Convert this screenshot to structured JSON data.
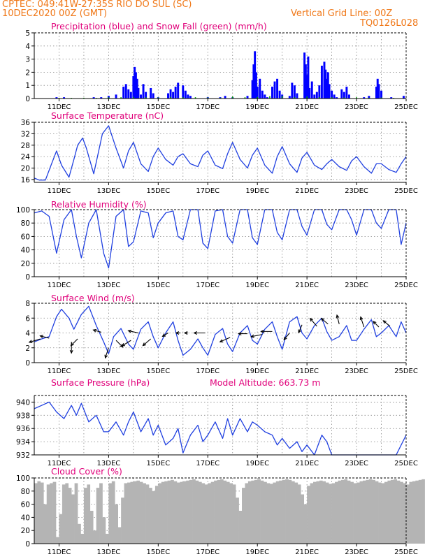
{
  "header": {
    "line1": "CPTEC:   049:41W-27:35S  RIO DO SUL (SC)",
    "line2": "10DEC2020 00Z (GMT)",
    "grid_note": "Vertical Grid Line: 00Z",
    "code": "TQ0126L028"
  },
  "colors": {
    "header": "#f07818",
    "title": "#e0007a",
    "precip": "#0000ff",
    "snow": "#00a000",
    "line": "#2040e0",
    "cloud": "#b4b4b4",
    "wind": "#000000"
  },
  "x_axis": {
    "start_day": 10,
    "end_day": 25,
    "tick_labels": [
      "11DEC",
      "13DEC",
      "15DEC",
      "17DEC",
      "19DEC",
      "21DEC",
      "23DEC",
      "25DEC"
    ],
    "tick_days": [
      11,
      13,
      15,
      17,
      19,
      21,
      23,
      25
    ]
  },
  "chart_data": [
    {
      "id": "precip",
      "type": "bar",
      "title": "Precipitation (blue) and Snow Fall (green) (mm/h)",
      "ylim": [
        0,
        5
      ],
      "yticks": [
        0,
        1,
        2,
        3,
        4,
        5
      ],
      "ytick_labels": [
        "0",
        "1",
        "2",
        "3",
        "4",
        "5"
      ],
      "x": [
        10.9,
        11.2,
        12.4,
        12.7,
        13.0,
        13.3,
        13.6,
        13.7,
        13.8,
        13.9,
        14.0,
        14.05,
        14.1,
        14.15,
        14.2,
        14.3,
        14.4,
        14.5,
        14.7,
        14.8,
        15.0,
        15.4,
        15.5,
        15.6,
        15.7,
        15.8,
        16.0,
        16.1,
        16.2,
        16.3,
        17.0,
        17.5,
        17.7,
        18.0,
        18.6,
        18.8,
        18.85,
        18.9,
        18.95,
        19.0,
        19.1,
        19.2,
        19.3,
        19.4,
        19.6,
        19.7,
        19.8,
        19.9,
        20.0,
        20.3,
        20.4,
        20.5,
        20.6,
        20.9,
        20.95,
        21.0,
        21.05,
        21.1,
        21.2,
        21.3,
        21.4,
        21.5,
        21.6,
        21.7,
        21.75,
        21.8,
        21.85,
        21.9,
        22.0,
        22.1,
        22.2,
        22.4,
        22.5,
        22.6,
        22.7,
        23.3,
        23.5,
        23.8,
        23.85,
        23.9,
        24.0,
        24.4,
        24.9
      ],
      "values": [
        0.1,
        0.1,
        0.1,
        0.1,
        0.2,
        0.3,
        0.9,
        1.1,
        0.7,
        0.5,
        1.7,
        2.4,
        2.0,
        1.5,
        0.8,
        0.3,
        1.1,
        0.5,
        0.8,
        0.4,
        0.1,
        0.4,
        0.7,
        0.5,
        0.9,
        1.2,
        1.0,
        0.6,
        0.3,
        0.2,
        0.1,
        0.1,
        0.2,
        0.1,
        0.2,
        1.4,
        2.6,
        3.6,
        2.0,
        0.9,
        1.5,
        0.6,
        0.3,
        0.1,
        0.9,
        1.3,
        1.5,
        0.6,
        0.3,
        0.2,
        1.2,
        1.0,
        0.4,
        3.5,
        2.6,
        1.8,
        3.2,
        0.8,
        1.3,
        0.3,
        0.5,
        1.0,
        2.5,
        2.8,
        2.2,
        1.5,
        2.0,
        1.1,
        0.6,
        0.3,
        0.1,
        0.7,
        0.5,
        0.9,
        0.3,
        0.1,
        0.2,
        0.9,
        1.5,
        1.1,
        0.6,
        0.1,
        0.2
      ],
      "snow_x": [
        11.0,
        11.5,
        12.0,
        12.5,
        13.0,
        13.5,
        14.0,
        14.5,
        15.0,
        15.5,
        16.0,
        16.5,
        17.0,
        17.5,
        18.0,
        18.5,
        19.0,
        19.5,
        20.0,
        20.5,
        21.0,
        21.5,
        22.0,
        22.5,
        23.0,
        23.5,
        24.0,
        24.5
      ],
      "snow_values": [
        0.05,
        0.05,
        0.06,
        0.05,
        0.1,
        0.1,
        0.12,
        0.1,
        0.08,
        0.12,
        0.1,
        0.1,
        0.08,
        0.06,
        0.15,
        0.1,
        0.12,
        0.18,
        0.2,
        0.1,
        0.15,
        0.1,
        0.1,
        0.08,
        0.1,
        0.06,
        0.08,
        0.05
      ]
    },
    {
      "id": "temp",
      "type": "line",
      "title": "Surface Temperature (nC)",
      "ylim": [
        15,
        36
      ],
      "yticks": [
        16,
        20,
        24,
        28,
        32,
        36
      ],
      "ytick_labels": [
        "16",
        "20",
        "24",
        "28",
        "32",
        "36"
      ],
      "x": [
        10.0,
        10.2,
        10.45,
        10.7,
        10.9,
        11.1,
        11.4,
        11.6,
        11.75,
        11.95,
        12.1,
        12.4,
        12.6,
        12.75,
        13.0,
        13.3,
        13.6,
        13.8,
        14.0,
        14.3,
        14.6,
        14.8,
        15.0,
        15.3,
        15.6,
        15.8,
        16.0,
        16.3,
        16.6,
        16.8,
        17.0,
        17.3,
        17.6,
        17.8,
        18.0,
        18.3,
        18.6,
        18.8,
        19.0,
        19.3,
        19.6,
        19.8,
        20.0,
        20.3,
        20.6,
        20.8,
        21.0,
        21.3,
        21.6,
        21.8,
        22.0,
        22.3,
        22.6,
        22.8,
        23.0,
        23.3,
        23.6,
        23.8,
        24.0,
        24.3,
        24.6,
        24.8,
        25.0
      ],
      "values": [
        16.5,
        15.8,
        15.8,
        21.5,
        26.0,
        21.0,
        16.8,
        23.0,
        28.0,
        30.5,
        27.0,
        18.0,
        26.0,
        32.0,
        34.8,
        27.0,
        20.0,
        26.0,
        29.0,
        21.5,
        18.8,
        24.0,
        27.0,
        23.0,
        21.0,
        24.0,
        25.0,
        21.5,
        20.5,
        24.5,
        26.0,
        21.0,
        19.8,
        25.0,
        29.0,
        23.0,
        20.0,
        24.5,
        27.0,
        21.0,
        18.2,
        24.0,
        27.5,
        21.5,
        18.5,
        23.5,
        25.5,
        21.0,
        19.5,
        21.5,
        23.0,
        20.5,
        19.2,
        22.5,
        24.0,
        20.5,
        18.2,
        21.5,
        21.5,
        19.5,
        18.5,
        21.5,
        24.0
      ]
    },
    {
      "id": "rh",
      "type": "line",
      "title": "Relative Humidity (%)",
      "ylim": [
        0,
        100
      ],
      "yticks": [
        0,
        20,
        40,
        60,
        80,
        100
      ],
      "ytick_labels": [
        "0",
        "20",
        "40",
        "60",
        "80",
        "100"
      ],
      "x": [
        10.0,
        10.3,
        10.6,
        10.9,
        11.2,
        11.5,
        11.7,
        11.9,
        12.2,
        12.5,
        12.8,
        13.0,
        13.3,
        13.6,
        13.8,
        14.0,
        14.3,
        14.6,
        14.8,
        15.0,
        15.3,
        15.6,
        15.8,
        16.0,
        16.3,
        16.6,
        16.8,
        17.0,
        17.3,
        17.6,
        17.8,
        18.0,
        18.3,
        18.6,
        18.8,
        19.0,
        19.3,
        19.6,
        19.8,
        20.0,
        20.3,
        20.6,
        20.8,
        21.0,
        21.3,
        21.6,
        21.8,
        22.0,
        22.3,
        22.6,
        22.8,
        23.0,
        23.3,
        23.6,
        23.8,
        24.0,
        24.3,
        24.6,
        24.8,
        25.0
      ],
      "values": [
        95,
        98,
        90,
        35,
        85,
        100,
        60,
        28,
        80,
        100,
        35,
        13,
        90,
        100,
        45,
        52,
        98,
        95,
        58,
        80,
        95,
        98,
        60,
        55,
        100,
        100,
        50,
        42,
        98,
        100,
        60,
        50,
        100,
        100,
        58,
        48,
        100,
        100,
        66,
        55,
        100,
        100,
        75,
        62,
        100,
        100,
        78,
        70,
        100,
        100,
        85,
        62,
        100,
        100,
        80,
        72,
        100,
        100,
        48,
        80
      ]
    },
    {
      "id": "wind",
      "type": "line",
      "title": "Surface Wind (m/s)",
      "ylim": [
        0,
        8
      ],
      "yticks": [
        0,
        2,
        4,
        6,
        8
      ],
      "ytick_labels": [
        "0",
        "2",
        "4",
        "6",
        "8"
      ],
      "x": [
        10.0,
        10.3,
        10.6,
        10.9,
        11.1,
        11.4,
        11.6,
        11.9,
        12.2,
        12.5,
        12.8,
        13.0,
        13.2,
        13.5,
        13.8,
        14.0,
        14.3,
        14.6,
        14.8,
        15.0,
        15.3,
        15.6,
        15.8,
        16.0,
        16.3,
        16.6,
        16.8,
        17.0,
        17.3,
        17.6,
        17.8,
        18.0,
        18.3,
        18.6,
        18.8,
        19.0,
        19.3,
        19.6,
        19.8,
        20.0,
        20.3,
        20.6,
        20.8,
        21.0,
        21.3,
        21.6,
        21.8,
        22.0,
        22.3,
        22.6,
        22.8,
        23.0,
        23.3,
        23.6,
        23.8,
        24.0,
        24.3,
        24.6,
        24.8,
        25.0
      ],
      "values": [
        2.8,
        3.2,
        3.5,
        6.2,
        7.2,
        6.0,
        4.5,
        6.5,
        7.6,
        5.0,
        2.8,
        1.2,
        3.5,
        4.6,
        2.5,
        1.8,
        4.5,
        5.5,
        3.5,
        2.0,
        4.0,
        5.5,
        3.0,
        1.0,
        1.8,
        3.2,
        2.0,
        1.0,
        3.8,
        4.6,
        2.5,
        1.5,
        4.0,
        5.0,
        3.0,
        2.5,
        4.5,
        5.5,
        3.5,
        1.8,
        5.5,
        6.2,
        4.0,
        3.2,
        5.0,
        6.0,
        4.2,
        3.0,
        3.5,
        5.0,
        3.0,
        3.0,
        4.5,
        5.8,
        3.5,
        4.0,
        5.0,
        3.5,
        5.5,
        4.0
      ],
      "arrows": [
        {
          "x": 10.25,
          "y": 3.2,
          "u": -1.0,
          "v": -0.3
        },
        {
          "x": 10.6,
          "y": 3.3,
          "u": -0.8,
          "v": 0.2
        },
        {
          "x": 11.5,
          "y": 2.8,
          "u": 0.0,
          "v": -1.0
        },
        {
          "x": 11.75,
          "y": 3.2,
          "u": -0.6,
          "v": -0.6
        },
        {
          "x": 12.7,
          "y": 4.1,
          "u": -0.7,
          "v": 0.2
        },
        {
          "x": 13.0,
          "y": 2.0,
          "u": -0.3,
          "v": -0.9
        },
        {
          "x": 13.3,
          "y": 3.0,
          "u": 0.6,
          "v": -0.6
        },
        {
          "x": 13.9,
          "y": 3.0,
          "u": -0.8,
          "v": -0.5
        },
        {
          "x": 14.2,
          "y": 4.0,
          "u": -0.9,
          "v": 0.2
        },
        {
          "x": 14.7,
          "y": 3.2,
          "u": -0.7,
          "v": -0.6
        },
        {
          "x": 15.4,
          "y": 4.0,
          "u": -0.5,
          "v": -0.3
        },
        {
          "x": 15.9,
          "y": 4.0,
          "u": -0.4,
          "v": 0.0
        },
        {
          "x": 16.2,
          "y": 4.0,
          "u": -0.3,
          "v": 0.0
        },
        {
          "x": 16.9,
          "y": 4.0,
          "u": -1.0,
          "v": 0.0
        },
        {
          "x": 17.9,
          "y": 3.4,
          "u": -0.9,
          "v": -0.4
        },
        {
          "x": 18.6,
          "y": 3.9,
          "u": -0.8,
          "v": 0.0
        },
        {
          "x": 19.2,
          "y": 3.8,
          "u": -1.0,
          "v": -0.2
        },
        {
          "x": 19.6,
          "y": 4.2,
          "u": -1.0,
          "v": 0.0
        },
        {
          "x": 20.3,
          "y": 4.0,
          "u": -0.5,
          "v": -0.6
        },
        {
          "x": 20.8,
          "y": 5.1,
          "u": -0.3,
          "v": -0.7
        },
        {
          "x": 21.4,
          "y": 4.9,
          "u": -0.6,
          "v": 0.7
        },
        {
          "x": 21.85,
          "y": 5.2,
          "u": -0.6,
          "v": 0.5
        },
        {
          "x": 22.3,
          "y": 5.2,
          "u": -0.2,
          "v": 0.8
        },
        {
          "x": 23.3,
          "y": 4.8,
          "u": -0.3,
          "v": 0.9
        },
        {
          "x": 23.9,
          "y": 4.8,
          "u": -0.5,
          "v": 0.5
        },
        {
          "x": 24.35,
          "y": 4.9,
          "u": -0.6,
          "v": 0.5
        }
      ]
    },
    {
      "id": "pressure",
      "type": "line",
      "title": "Surface Pressure (hPa)",
      "annotation": "Model Altitude: 663.73 m",
      "ylim": [
        932,
        941
      ],
      "yticks": [
        932,
        934,
        936,
        938,
        940
      ],
      "ytick_labels": [
        "932",
        "934",
        "936",
        "938",
        "940"
      ],
      "x": [
        10.0,
        10.3,
        10.6,
        10.9,
        11.2,
        11.5,
        11.7,
        11.9,
        12.2,
        12.5,
        12.8,
        13.0,
        13.3,
        13.6,
        13.8,
        14.0,
        14.3,
        14.6,
        14.8,
        15.0,
        15.3,
        15.6,
        15.8,
        16.0,
        16.3,
        16.6,
        16.8,
        17.0,
        17.3,
        17.6,
        17.8,
        18.0,
        18.3,
        18.6,
        18.8,
        19.0,
        19.3,
        19.6,
        19.8,
        20.0,
        20.3,
        20.6,
        20.8,
        21.0,
        21.3,
        21.6,
        21.8,
        22.0,
        22.3,
        22.6,
        22.8,
        23.0,
        23.3,
        23.6,
        23.8,
        24.0,
        24.3,
        24.6,
        24.8,
        25.0
      ],
      "values": [
        939.0,
        939.5,
        940.0,
        938.5,
        937.5,
        939.5,
        938.0,
        939.8,
        937.0,
        938.0,
        935.5,
        935.5,
        937.0,
        935.0,
        937.0,
        938.5,
        935.5,
        937.5,
        935.0,
        936.5,
        933.5,
        934.5,
        936.0,
        932.3,
        935.0,
        936.5,
        934.0,
        935.0,
        937.0,
        934.5,
        937.5,
        935.0,
        937.5,
        935.5,
        937.0,
        936.5,
        935.5,
        935.0,
        933.5,
        934.5,
        933.0,
        934.0,
        932.5,
        933.5,
        932.0,
        935.0,
        934.0,
        932.0,
        932.0,
        931.5,
        932.0,
        931.5,
        932.0,
        931.0,
        932.0,
        931.5,
        931.8,
        931.5,
        933.5,
        935.0
      ]
    },
    {
      "id": "cloud",
      "type": "bar",
      "title": "Cloud Cover (%)",
      "ylim": [
        0,
        100
      ],
      "yticks": [
        0,
        20,
        40,
        60,
        80,
        100
      ],
      "ytick_labels": [
        "0",
        "20",
        "40",
        "60",
        "80",
        "100"
      ],
      "x_start": 10.0,
      "x_step": 0.125,
      "values": [
        92,
        95,
        93,
        60,
        90,
        92,
        94,
        10,
        45,
        90,
        92,
        85,
        75,
        92,
        30,
        15,
        85,
        90,
        50,
        20,
        85,
        92,
        40,
        15,
        92,
        95,
        60,
        25,
        70,
        92,
        93,
        94,
        95,
        96,
        94,
        92,
        90,
        85,
        80,
        88,
        92,
        94,
        95,
        96,
        97,
        95,
        93,
        94,
        95,
        96,
        97,
        98,
        96,
        94,
        92,
        90,
        92,
        94,
        96,
        97,
        98,
        96,
        94,
        92,
        90,
        70,
        50,
        85,
        92,
        95,
        96,
        97,
        98,
        96,
        94,
        92,
        91,
        93,
        95,
        96,
        97,
        98,
        97,
        95,
        93,
        90,
        75,
        60,
        88,
        92,
        94,
        95,
        96,
        95,
        93,
        91,
        92,
        94,
        96,
        97,
        98,
        96,
        94,
        92,
        93,
        95,
        96,
        97,
        98,
        97,
        95,
        93,
        92,
        94,
        96,
        97,
        98,
        96,
        94,
        92,
        90,
        94,
        95,
        96,
        97,
        98
      ]
    }
  ]
}
